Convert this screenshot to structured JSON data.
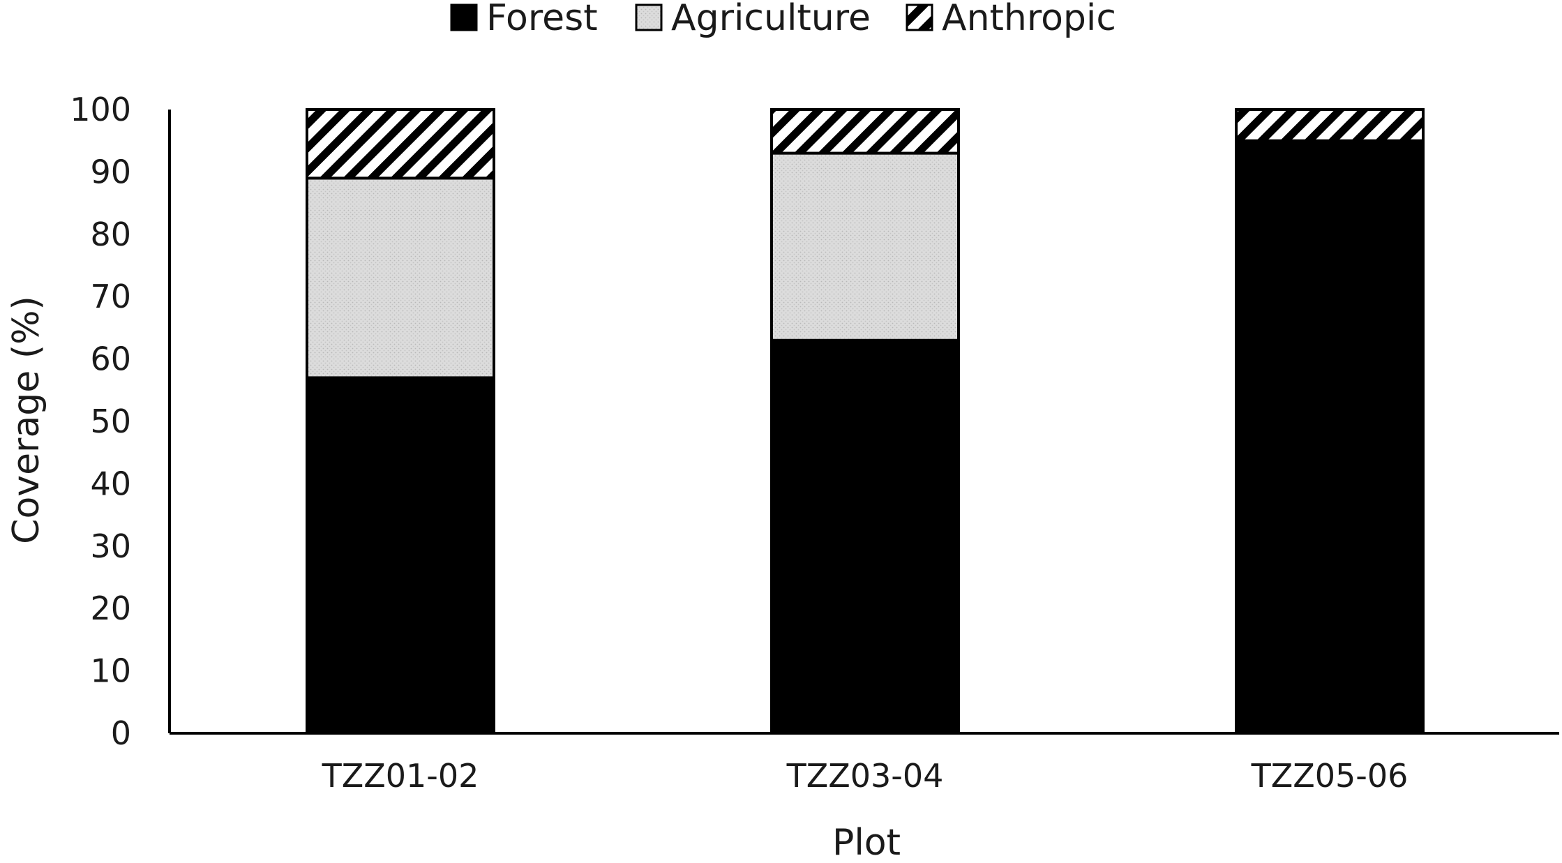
{
  "chart_data": {
    "type": "bar",
    "stacked": true,
    "title": "",
    "xlabel": "Plot",
    "ylabel": "Coverage (%)",
    "ylim": [
      0,
      100
    ],
    "ytick_step": 10,
    "categories": [
      "TZZ01-02",
      "TZZ03-04",
      "TZZ05-06"
    ],
    "series": [
      {
        "name": "Forest",
        "values": [
          57,
          63,
          95
        ],
        "color": "#000000",
        "pattern": "solid"
      },
      {
        "name": "Agriculture",
        "values": [
          32,
          30,
          0
        ],
        "color": "#d9d9d9",
        "pattern": "dotted-gray"
      },
      {
        "name": "Anthropic",
        "values": [
          11,
          7,
          5
        ],
        "color": "#000000",
        "pattern": "diagonal-hatch"
      }
    ],
    "legend_position": "top-center",
    "grid": false
  }
}
